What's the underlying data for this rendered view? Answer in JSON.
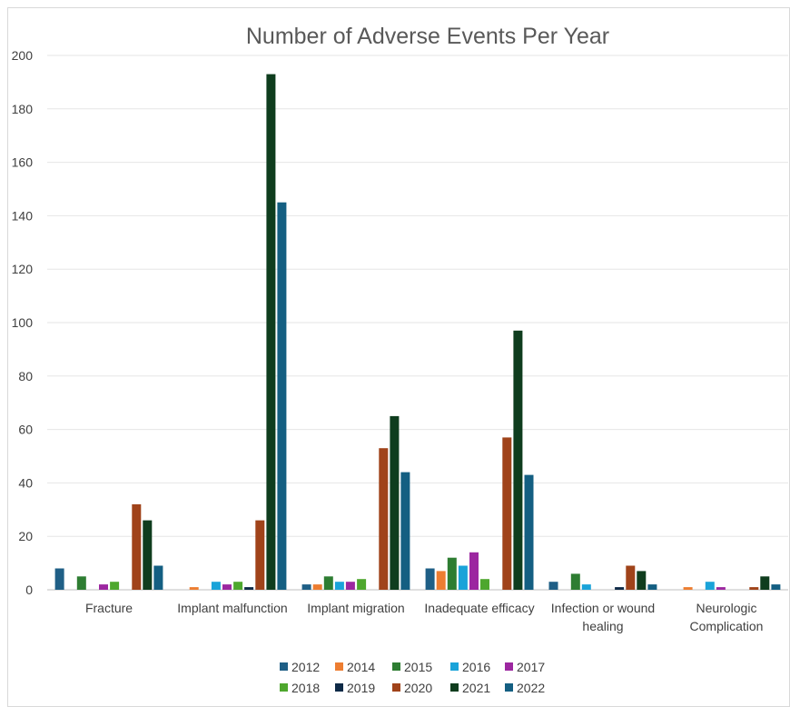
{
  "chart_data": {
    "type": "bar",
    "title": "Number of Adverse Events Per Year",
    "xlabel": "",
    "ylabel": "",
    "ylim": [
      0,
      200
    ],
    "yticks": [
      0,
      20,
      40,
      60,
      80,
      100,
      120,
      140,
      160,
      180,
      200
    ],
    "grid": true,
    "legend_position": "bottom",
    "categories": [
      [
        "Fracture"
      ],
      [
        "Implant malfunction"
      ],
      [
        "Implant migration"
      ],
      [
        "Inadequate efficacy"
      ],
      [
        "Infection or wound",
        "healing"
      ],
      [
        "Neurologic",
        "Complication"
      ]
    ],
    "series": [
      {
        "name": "2012",
        "color": "#1f5f86",
        "values": [
          8,
          0,
          2,
          8,
          3,
          0
        ]
      },
      {
        "name": "2014",
        "color": "#ed7d31",
        "values": [
          0,
          1,
          2,
          7,
          0,
          1
        ]
      },
      {
        "name": "2015",
        "color": "#2e7d32",
        "values": [
          5,
          0,
          5,
          12,
          6,
          0
        ]
      },
      {
        "name": "2016",
        "color": "#1aa3d9",
        "values": [
          0,
          3,
          3,
          9,
          2,
          3
        ]
      },
      {
        "name": "2017",
        "color": "#9c27a0",
        "values": [
          2,
          2,
          3,
          14,
          0,
          1
        ]
      },
      {
        "name": "2018",
        "color": "#4ea72e",
        "values": [
          3,
          3,
          4,
          4,
          0,
          0
        ]
      },
      {
        "name": "2019",
        "color": "#0e2a47",
        "values": [
          0,
          1,
          0,
          0,
          1,
          0
        ]
      },
      {
        "name": "2020",
        "color": "#a0431a",
        "values": [
          32,
          26,
          53,
          57,
          9,
          1
        ]
      },
      {
        "name": "2021",
        "color": "#0f3d1e",
        "values": [
          26,
          193,
          65,
          97,
          7,
          5
        ]
      },
      {
        "name": "2022",
        "color": "#145f82",
        "values": [
          9,
          145,
          44,
          43,
          2,
          2
        ]
      }
    ]
  }
}
